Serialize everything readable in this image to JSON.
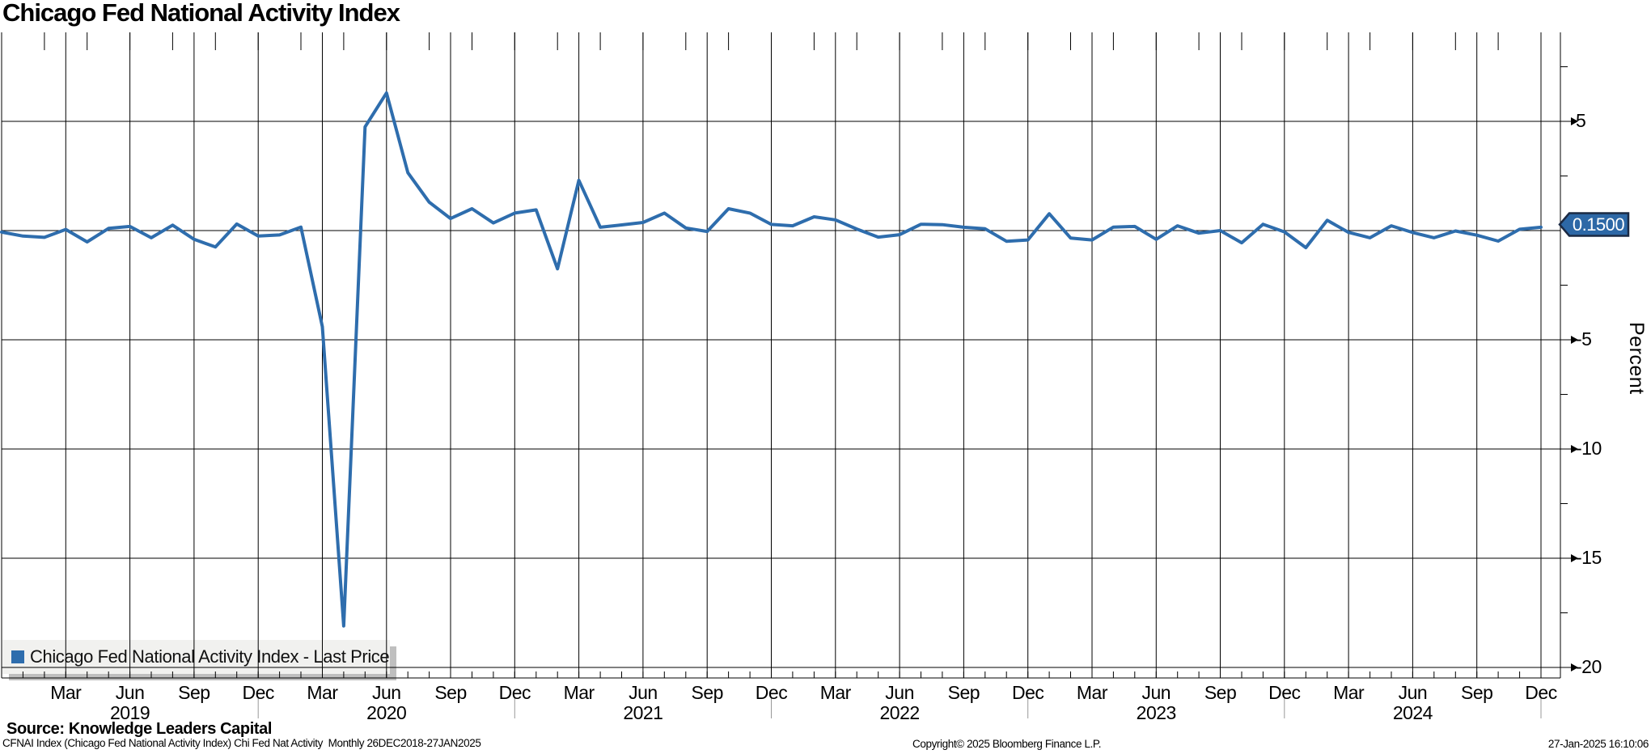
{
  "header": {
    "title": "Chicago Fed National Activity Index"
  },
  "legend": {
    "label": "Chicago Fed National Activity Index - Last Price",
    "swatch_color": "#2e6dad"
  },
  "footer": {
    "source": "Source: Knowledge Leaders Capital",
    "description": "CFNAI Index (Chicago Fed National Activity Index) Chi Fed Nat Activity  Monthly 26DEC2018-27JAN2025",
    "copyright": "Copyright© 2025 Bloomberg Finance L.P.",
    "timestamp": "27-Jan-2025 16:10:06"
  },
  "chart_data": {
    "type": "line",
    "title": "Chicago Fed National Activity Index",
    "last_price_badge": "0.1500",
    "badge_color": "#2d68a6",
    "badge_border_color": "#1b2a44",
    "line_color": "#2e6dad",
    "grid_color": "#000000",
    "year_separator_color": "#999999",
    "legend_box_color": "#f1f1ef",
    "legend_shadow_color": "#bfbfbf",
    "series": [
      {
        "name": "Chicago Fed National Activity Index - Last Price",
        "start_month": "2018-12",
        "frequency": "monthly",
        "color": "#2e6dad",
        "values": [
          -0.07,
          -0.25,
          -0.31,
          0.05,
          -0.52,
          0.1,
          0.19,
          -0.33,
          0.25,
          -0.4,
          -0.75,
          0.3,
          -0.25,
          -0.2,
          0.16,
          -4.4,
          -18.1,
          4.75,
          6.3,
          2.65,
          1.3,
          0.55,
          1.0,
          0.35,
          0.8,
          0.95,
          -1.75,
          2.3,
          0.15,
          0.26,
          0.37,
          0.8,
          0.12,
          -0.04,
          1.0,
          0.8,
          0.28,
          0.22,
          0.63,
          0.49,
          0.07,
          -0.3,
          -0.19,
          0.29,
          0.27,
          0.15,
          0.08,
          -0.49,
          -0.43,
          0.77,
          -0.34,
          -0.43,
          0.16,
          0.19,
          -0.4,
          0.22,
          -0.12,
          0.0,
          -0.56,
          0.29,
          -0.06,
          -0.78,
          0.47,
          -0.08,
          -0.33,
          0.22,
          -0.09,
          -0.33,
          -0.02,
          -0.21,
          -0.48,
          0.06,
          0.15
        ]
      }
    ],
    "y_axis": {
      "label": "Percent",
      "tick_labels": [
        "5",
        "-5",
        "-10",
        "-15",
        "-20"
      ],
      "tick_values": [
        5,
        -5,
        -10,
        -15,
        -20
      ],
      "gridline_values": [
        5,
        0,
        -5,
        -10,
        -15,
        -20
      ],
      "minor_tick_values": [
        7.5,
        2.5,
        -2.5,
        -7.5,
        -12.5,
        -17.5
      ],
      "range": [
        -20.6,
        9.3
      ]
    },
    "x_axis": {
      "quarter_label_cycle": [
        "Mar",
        "Jun",
        "Sep",
        "Dec"
      ],
      "years": [
        "2019",
        "2020",
        "2021",
        "2022",
        "2023",
        "2024"
      ],
      "first_year_label_month_index": 6,
      "total_months": 73
    }
  }
}
